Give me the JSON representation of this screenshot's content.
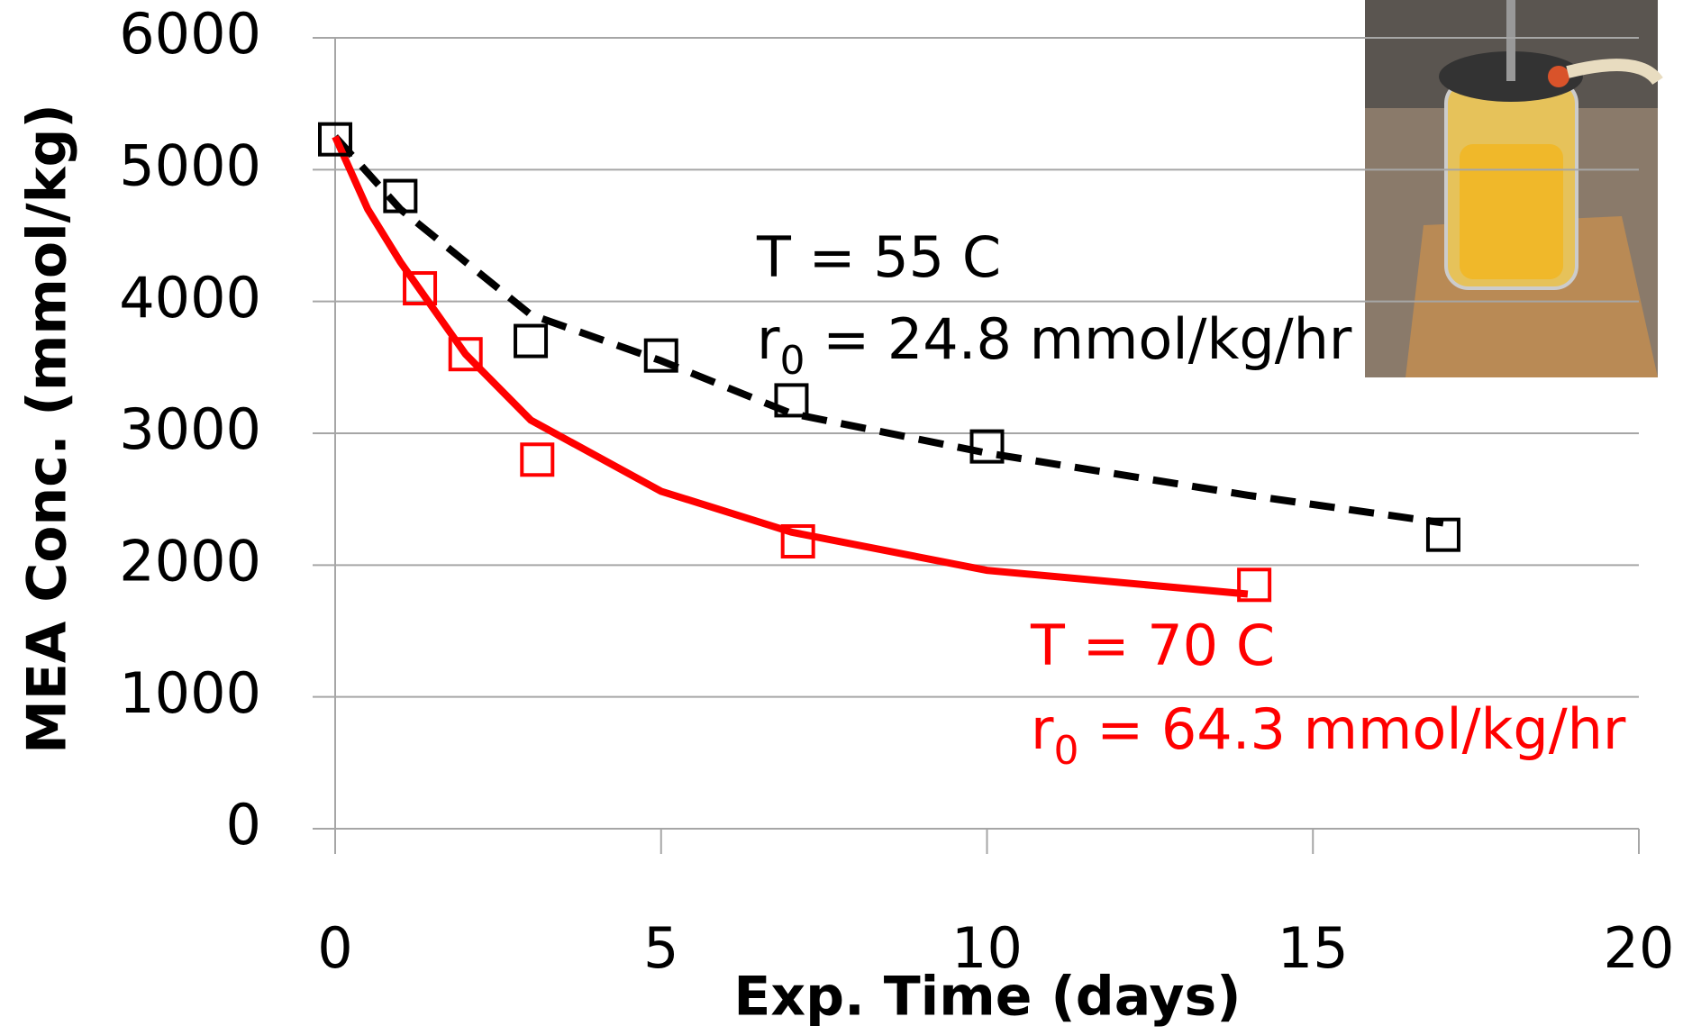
{
  "chart_data": {
    "type": "scatter",
    "x_label": "Exp. Time (days)",
    "y_label": "MEA Conc. (mmol/kg)",
    "xlim": [
      0,
      20
    ],
    "xticks": [
      0,
      5,
      10,
      15,
      20
    ],
    "ylim": [
      0,
      6000
    ],
    "yticks": [
      0,
      1000,
      2000,
      3000,
      4000,
      5000,
      6000
    ],
    "grid": true,
    "series": [
      {
        "style": "dashed",
        "color": "#000000",
        "x": [
          0,
          1,
          3,
          5,
          7,
          10,
          14,
          17
        ],
        "values": [
          5250,
          4700,
          3900,
          3550,
          3150,
          2850,
          2530,
          2320
        ]
      },
      {
        "style": "solid",
        "color": "#ff0000",
        "x": [
          0,
          0.5,
          1,
          2,
          3,
          5,
          7,
          10,
          14
        ],
        "values": [
          5250,
          4700,
          4300,
          3600,
          3100,
          2560,
          2250,
          1960,
          1780
        ]
      },
      {
        "style": "markers",
        "color": "#000000",
        "x": [
          0,
          1,
          3,
          5,
          7,
          10,
          17
        ],
        "values": [
          5230,
          4800,
          3700,
          3590,
          3250,
          2900,
          2230
        ]
      },
      {
        "style": "markers",
        "color": "#ff0000",
        "x": [
          1.3,
          2,
          3.1,
          7.1,
          14.1
        ],
        "values": [
          4100,
          3600,
          2800,
          2180,
          1850
        ]
      }
    ],
    "annotations": [
      {
        "temp": "T = 55  C",
        "rate_prefix": "r",
        "rate_sub": "0",
        "rate_text": " = 24.8 mmol/kg/hr",
        "color": "#000000"
      },
      {
        "temp": "T = 70  C",
        "rate_prefix": "r",
        "rate_sub": "0",
        "rate_text": " = 64.3 mmol/kg/hr",
        "color": "#ff0000"
      }
    ]
  }
}
